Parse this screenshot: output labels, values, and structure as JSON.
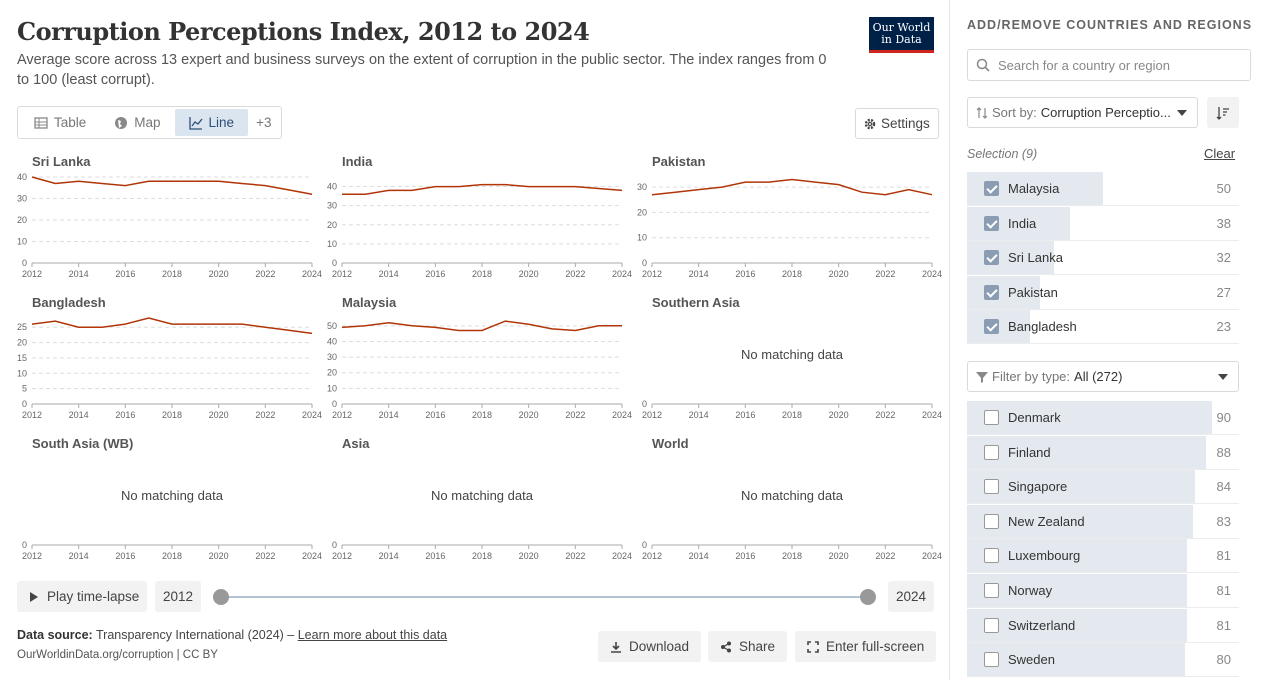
{
  "header": {
    "title": "Corruption Perceptions Index, 2012 to 2024",
    "subtitle": "Average score across 13 expert and business surveys on the extent of corruption in the public sector. The index ranges from 0 to 100 (least corrupt).",
    "logo_line1": "Our World",
    "logo_line2": "in Data"
  },
  "tabs": [
    {
      "label": "Table",
      "icon": "table-icon"
    },
    {
      "label": "Map",
      "icon": "globe-icon"
    },
    {
      "label": "Line",
      "icon": "line-chart-icon"
    },
    {
      "label": "+3"
    }
  ],
  "settings_label": "Settings",
  "no_data_text": "No matching data",
  "colors": {
    "line": "#b13507",
    "grid": "#dddddd",
    "accent": "#2d4e7a"
  },
  "chart_data": [
    {
      "type": "line",
      "title": "Sri Lanka",
      "x": [
        2012,
        2013,
        2014,
        2015,
        2016,
        2017,
        2018,
        2019,
        2020,
        2021,
        2022,
        2023,
        2024
      ],
      "values": [
        40,
        37,
        38,
        37,
        36,
        38,
        38,
        38,
        38,
        37,
        36,
        34,
        32
      ],
      "yticks": [
        0,
        10,
        20,
        30,
        40
      ],
      "ylim": [
        0,
        40
      ],
      "xticks": [
        "2012",
        "2014",
        "2016",
        "2018",
        "2020",
        "2022",
        "2024"
      ]
    },
    {
      "type": "line",
      "title": "India",
      "x": [
        2012,
        2013,
        2014,
        2015,
        2016,
        2017,
        2018,
        2019,
        2020,
        2021,
        2022,
        2023,
        2024
      ],
      "values": [
        36,
        36,
        38,
        38,
        40,
        40,
        41,
        41,
        40,
        40,
        40,
        39,
        38
      ],
      "yticks": [
        0,
        10,
        20,
        30,
        40
      ],
      "ylim": [
        0,
        45
      ],
      "xticks": [
        "2012",
        "2014",
        "2016",
        "2018",
        "2020",
        "2022",
        "2024"
      ]
    },
    {
      "type": "line",
      "title": "Pakistan",
      "x": [
        2012,
        2013,
        2014,
        2015,
        2016,
        2017,
        2018,
        2019,
        2020,
        2021,
        2022,
        2023,
        2024
      ],
      "values": [
        27,
        28,
        29,
        30,
        32,
        32,
        33,
        32,
        31,
        28,
        27,
        29,
        27
      ],
      "yticks": [
        0,
        10,
        20,
        30
      ],
      "ylim": [
        0,
        34
      ],
      "xticks": [
        "2012",
        "2014",
        "2016",
        "2018",
        "2020",
        "2022",
        "2024"
      ]
    },
    {
      "type": "line",
      "title": "Bangladesh",
      "x": [
        2012,
        2013,
        2014,
        2015,
        2016,
        2017,
        2018,
        2019,
        2020,
        2021,
        2022,
        2023,
        2024
      ],
      "values": [
        26,
        27,
        25,
        25,
        26,
        28,
        26,
        26,
        26,
        26,
        25,
        24,
        23
      ],
      "yticks": [
        0,
        5,
        10,
        15,
        20,
        25
      ],
      "ylim": [
        0,
        28
      ],
      "xticks": [
        "2012",
        "2014",
        "2016",
        "2018",
        "2020",
        "2022",
        "2024"
      ]
    },
    {
      "type": "line",
      "title": "Malaysia",
      "x": [
        2012,
        2013,
        2014,
        2015,
        2016,
        2017,
        2018,
        2019,
        2020,
        2021,
        2022,
        2023,
        2024
      ],
      "values": [
        49,
        50,
        52,
        50,
        49,
        47,
        47,
        53,
        51,
        48,
        47,
        50,
        50
      ],
      "yticks": [
        0,
        10,
        20,
        30,
        40,
        50
      ],
      "ylim": [
        0,
        55
      ],
      "xticks": [
        "2012",
        "2014",
        "2016",
        "2018",
        "2020",
        "2022",
        "2024"
      ]
    },
    {
      "type": "line",
      "title": "Southern Asia",
      "x": [],
      "values": [],
      "yticks": [
        0
      ],
      "ylim": [
        0,
        1
      ],
      "xticks": [
        "2012",
        "2014",
        "2016",
        "2018",
        "2020",
        "2022",
        "2024"
      ]
    },
    {
      "type": "line",
      "title": "South Asia (WB)",
      "x": [],
      "values": [],
      "yticks": [
        0
      ],
      "ylim": [
        0,
        1
      ],
      "xticks": [
        "2012",
        "2014",
        "2016",
        "2018",
        "2020",
        "2022",
        "2024"
      ]
    },
    {
      "type": "line",
      "title": "Asia",
      "x": [],
      "values": [],
      "yticks": [
        0
      ],
      "ylim": [
        0,
        1
      ],
      "xticks": [
        "2012",
        "2014",
        "2016",
        "2018",
        "2020",
        "2022",
        "2024"
      ]
    },
    {
      "type": "line",
      "title": "World",
      "x": [],
      "values": [],
      "yticks": [
        0
      ],
      "ylim": [
        0,
        1
      ],
      "xticks": [
        "2012",
        "2014",
        "2016",
        "2018",
        "2020",
        "2022",
        "2024"
      ]
    }
  ],
  "timeline": {
    "play_label": "Play time-lapse",
    "start_year": "2012",
    "end_year": "2024"
  },
  "footer": {
    "source_label": "Data source:",
    "source_text": "Transparency International (2024) –",
    "learn_more": "Learn more about this data",
    "url": "OurWorldinData.org/corruption | CC BY",
    "download": "Download",
    "share": "Share",
    "fullscreen": "Enter full-screen"
  },
  "sidebar": {
    "heading": "ADD/REMOVE COUNTRIES AND REGIONS",
    "search_placeholder": "Search for a country or region",
    "sort_label": "Sort by:",
    "sort_value": "Corruption Perceptio...",
    "selection_label": "Selection (9)",
    "clear_label": "Clear",
    "selected": [
      {
        "name": "Malaysia",
        "value": "50"
      },
      {
        "name": "India",
        "value": "38"
      },
      {
        "name": "Sri Lanka",
        "value": "32"
      },
      {
        "name": "Pakistan",
        "value": "27"
      },
      {
        "name": "Bangladesh",
        "value": "23"
      }
    ],
    "filter_label": "Filter by type:",
    "filter_value": "All (272)",
    "others": [
      {
        "name": "Denmark",
        "value": "90"
      },
      {
        "name": "Finland",
        "value": "88"
      },
      {
        "name": "Singapore",
        "value": "84"
      },
      {
        "name": "New Zealand",
        "value": "83"
      },
      {
        "name": "Luxembourg",
        "value": "81"
      },
      {
        "name": "Norway",
        "value": "81"
      },
      {
        "name": "Switzerland",
        "value": "81"
      },
      {
        "name": "Sweden",
        "value": "80"
      }
    ]
  }
}
